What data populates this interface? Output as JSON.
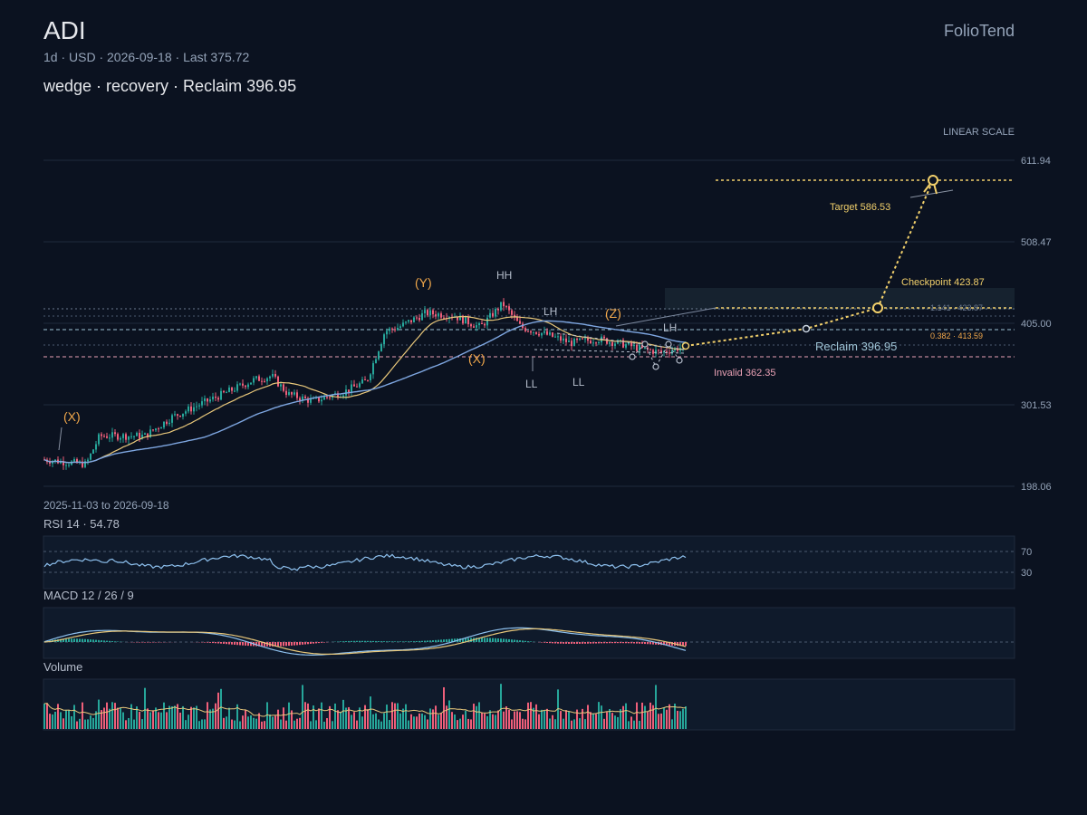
{
  "header": {
    "ticker": "ADI",
    "brand": "FolioTend",
    "subtitle": "1d · USD · 2026-09-18 · Last 375.72",
    "pattern": "wedge · recovery · Reclaim 396.95"
  },
  "chart_data": {
    "type": "candlestick",
    "scale_label": "LINEAR SCALE",
    "y_ticks": [
      "611.94",
      "508.47",
      "405.00",
      "301.53",
      "198.06"
    ],
    "ylim": [
      198.06,
      611.94
    ],
    "date_range_label": "2025-11-03 to 2026-09-18",
    "last": 375.72,
    "levels": {
      "target": {
        "label": "Target 586.53",
        "value": 586.53
      },
      "checkpoint": {
        "label": "Checkpoint 423.87",
        "value": 423.87
      },
      "reclaim": {
        "label": "Reclaim 396.95",
        "value": 396.95
      },
      "invalid": {
        "label": "Invalid 362.35",
        "value": 362.35
      },
      "fib_1141": {
        "label": "1.141 · 423.87",
        "value": 423.87
      },
      "fib_0382": {
        "label": "0.382 · 413.59",
        "value": 413.59
      }
    },
    "wave_labels": [
      "(X)",
      "(Y)",
      "(X)",
      "(Z)"
    ],
    "swing_labels": [
      "HH",
      "LH",
      "LL",
      "LL",
      "LH"
    ],
    "colors": {
      "up": "#26a69a",
      "down": "#ef5f7a",
      "ma_fast": "#e8c77a",
      "ma_slow": "#7ea6e0",
      "projection": "#f2d06b",
      "invalid": "#e8a0b4",
      "reclaim": "#9fc4d6"
    }
  },
  "rsi": {
    "label": "RSI 14 · 54.78",
    "levels": [
      "70",
      "30"
    ]
  },
  "macd": {
    "label": "MACD 12 / 26 / 9"
  },
  "volume": {
    "label": "Volume"
  }
}
